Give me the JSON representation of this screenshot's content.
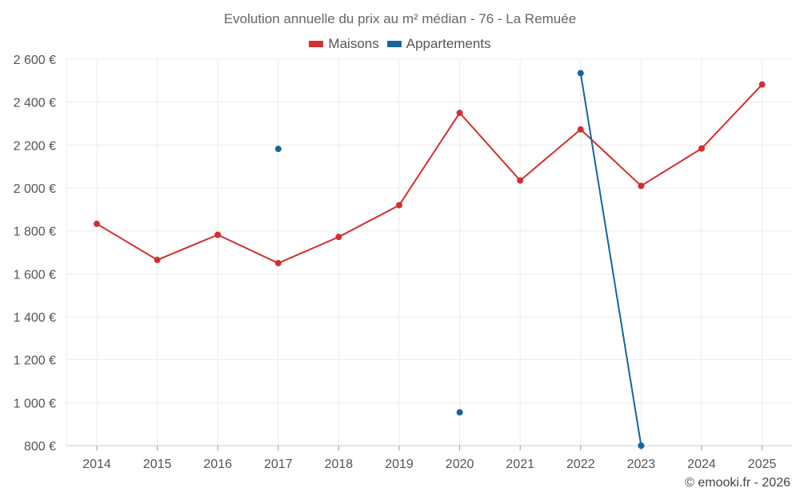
{
  "chart_data": {
    "type": "line",
    "title": "Evolution annuelle du prix au m² médian - 76 - La Remuée",
    "categories": [
      "2014",
      "2015",
      "2016",
      "2017",
      "2018",
      "2019",
      "2020",
      "2021",
      "2022",
      "2023",
      "2024",
      "2025"
    ],
    "y_tick_labels": [
      "800 €",
      "1 000 €",
      "1 200 €",
      "1 400 €",
      "1 600 €",
      "1 800 €",
      "2 000 €",
      "2 200 €",
      "2 400 €",
      "2 600 €"
    ],
    "ylim": [
      800,
      2600
    ],
    "grid": true,
    "legend_position": "top-center",
    "series": [
      {
        "name": "Maisons",
        "color": "#d32f2f",
        "values": [
          1833,
          1665,
          1782,
          1650,
          1772,
          1920,
          2350,
          2035,
          2273,
          2010,
          2184,
          2482
        ]
      },
      {
        "name": "Appartements",
        "color": "#1565a0",
        "values": [
          null,
          null,
          null,
          2182,
          null,
          null,
          955,
          null,
          2535,
          800,
          null,
          null
        ]
      }
    ]
  },
  "footer": {
    "credit": "© emooki.fr - 2026"
  }
}
